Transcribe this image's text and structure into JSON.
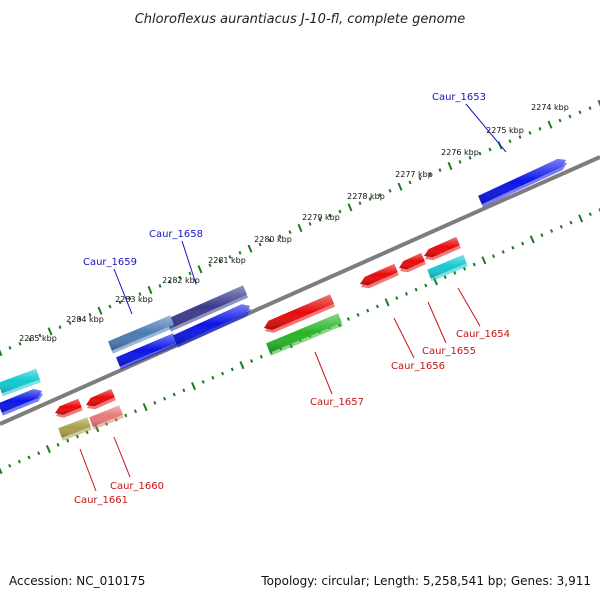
{
  "title": "Chloroflexus aurantiacus J-10-fl, complete genome",
  "footer": {
    "accession": "Accession: NC_010175",
    "stats": "Topology: circular; Length: 5,258,541 bp; Genes: 3,911"
  },
  "colors": {
    "backbone": "#7d7d7d",
    "tick_track": "#1e7a1e",
    "label_top": "#1414c8",
    "label_bottom": "#c81414",
    "blue": "#0a14e6",
    "cyan": "#12c8d2",
    "navy": "#3a3a8c",
    "steel": "#4a7ab4",
    "red": "#e60a0a",
    "green": "#28b428",
    "olive": "#a8a048",
    "pink": "#e67878"
  },
  "kbp_labels": [
    "2274 kbp",
    "2275 kbp",
    "2276 kbp",
    "2277 kbp",
    "2278 kbp",
    "2279 kbp",
    "2280 kbp",
    "2281 kbp",
    "2282 kbp",
    "2283 kbp",
    "2284 kbp",
    "2285 kbp"
  ],
  "gene_labels_top": [
    "Caur_1653",
    "Caur_1658",
    "Caur_1659"
  ],
  "gene_labels_bottom": [
    "Caur_1654",
    "Caur_1655",
    "Caur_1656",
    "Caur_1657",
    "Caur_1660",
    "Caur_1661"
  ]
}
